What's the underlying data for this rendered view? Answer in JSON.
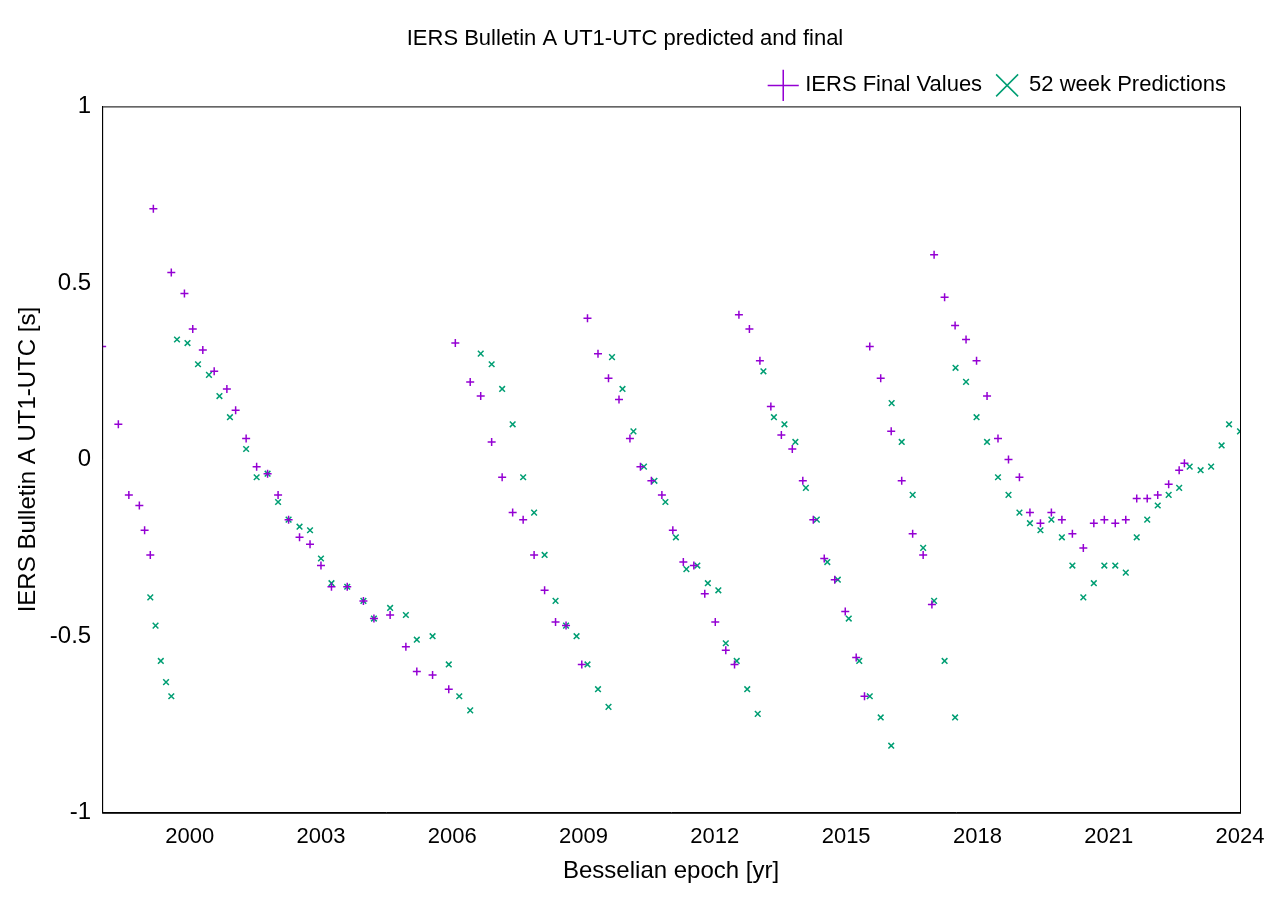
{
  "chart_data": {
    "type": "scatter",
    "title": "IERS Bulletin A UT1-UTC predicted and final",
    "x_label": "Besselian epoch [yr]",
    "y_label": "IERS Bulletin A UT1-UTC [s]",
    "xlim": [
      1998,
      2024
    ],
    "xticks": [
      2000,
      2003,
      2006,
      2009,
      2012,
      2015,
      2018,
      2021,
      2024
    ],
    "ylim": [
      -1,
      1
    ],
    "yticks": [
      -1,
      -0.5,
      0,
      0.5,
      1
    ],
    "grid": false,
    "legend": "top-right",
    "series": [
      {
        "name": "IERS Final Values",
        "color": "#9400d3",
        "marker": "plus",
        "x": [
          1998.0,
          1998.37,
          1998.61,
          1998.85,
          1998.97,
          1999.1,
          1999.17,
          1999.58,
          1999.88,
          2000.07,
          2000.3,
          2000.56,
          2000.85,
          2001.05,
          2001.29,
          2001.53,
          2001.78,
          2002.02,
          2002.26,
          2002.51,
          2002.75,
          2003.0,
          2003.24,
          2003.6,
          2003.97,
          2004.21,
          2004.58,
          2004.94,
          2005.19,
          2005.55,
          2005.92,
          2006.07,
          2006.41,
          2006.65,
          2006.9,
          2007.14,
          2007.38,
          2007.62,
          2007.87,
          2008.11,
          2008.36,
          2008.6,
          2008.96,
          2009.09,
          2009.33,
          2009.57,
          2009.81,
          2010.06,
          2010.3,
          2010.55,
          2010.79,
          2011.04,
          2011.28,
          2011.52,
          2011.77,
          2012.01,
          2012.25,
          2012.45,
          2012.55,
          2012.79,
          2013.03,
          2013.28,
          2013.52,
          2013.77,
          2014.01,
          2014.25,
          2014.5,
          2014.74,
          2014.98,
          2015.23,
          2015.42,
          2015.54,
          2015.79,
          2016.03,
          2016.27,
          2016.52,
          2016.76,
          2016.96,
          2017.01,
          2017.25,
          2017.49,
          2017.74,
          2017.98,
          2018.22,
          2018.47,
          2018.71,
          2018.96,
          2019.2,
          2019.44,
          2019.69,
          2019.93,
          2020.17,
          2020.42,
          2020.66,
          2020.9,
          2021.15,
          2021.39,
          2021.64,
          2021.88,
          2022.12,
          2022.37,
          2022.61,
          2022.73
        ],
        "values": [
          0.32,
          0.1,
          -0.1,
          -0.13,
          -0.2,
          -0.27,
          0.71,
          0.53,
          0.47,
          0.37,
          0.31,
          0.25,
          0.2,
          0.14,
          0.06,
          -0.02,
          -0.04,
          -0.1,
          -0.17,
          -0.22,
          -0.24,
          -0.3,
          -0.36,
          -0.36,
          -0.4,
          -0.45,
          -0.44,
          -0.53,
          -0.6,
          -0.61,
          -0.65,
          0.33,
          0.22,
          0.18,
          0.05,
          -0.05,
          -0.15,
          -0.17,
          -0.27,
          -0.37,
          -0.46,
          -0.47,
          -0.58,
          0.4,
          0.3,
          0.23,
          0.17,
          0.06,
          -0.02,
          -0.06,
          -0.1,
          -0.2,
          -0.29,
          -0.3,
          -0.38,
          -0.46,
          -0.54,
          -0.58,
          0.41,
          0.37,
          0.28,
          0.15,
          0.07,
          0.03,
          -0.06,
          -0.17,
          -0.28,
          -0.34,
          -0.43,
          -0.56,
          -0.67,
          0.32,
          0.23,
          0.08,
          -0.06,
          -0.21,
          -0.27,
          -0.41,
          0.58,
          0.46,
          0.38,
          0.34,
          0.28,
          0.18,
          0.06,
          0.0,
          -0.05,
          -0.15,
          -0.18,
          -0.15,
          -0.17,
          -0.21,
          -0.25,
          -0.18,
          -0.17,
          -0.18,
          -0.17,
          -0.11,
          -0.11,
          -0.1,
          -0.07,
          -0.03,
          -0.01
        ]
      },
      {
        "name": "52 week Predictions",
        "color": "#009e73",
        "marker": "x",
        "x": [
          1999.1,
          1999.22,
          1999.34,
          1999.46,
          1999.58,
          1999.71,
          1999.95,
          2000.19,
          2000.44,
          2000.68,
          2000.92,
          2001.29,
          2001.53,
          2001.78,
          2002.02,
          2002.26,
          2002.51,
          2002.75,
          2003.0,
          2003.24,
          2003.6,
          2003.97,
          2004.21,
          2004.58,
          2004.94,
          2005.19,
          2005.55,
          2005.92,
          2006.16,
          2006.41,
          2006.65,
          2006.9,
          2007.14,
          2007.38,
          2007.62,
          2007.87,
          2008.11,
          2008.36,
          2008.6,
          2008.84,
          2009.09,
          2009.33,
          2009.57,
          2009.65,
          2009.89,
          2010.14,
          2010.38,
          2010.62,
          2010.87,
          2011.11,
          2011.35,
          2011.6,
          2011.84,
          2012.08,
          2012.25,
          2012.5,
          2012.74,
          2012.98,
          2013.11,
          2013.35,
          2013.59,
          2013.84,
          2014.08,
          2014.33,
          2014.57,
          2014.81,
          2015.06,
          2015.3,
          2015.54,
          2015.79,
          2016.03,
          2016.04,
          2016.27,
          2016.52,
          2016.76,
          2017.01,
          2017.25,
          2017.49,
          2017.5,
          2017.74,
          2017.98,
          2018.22,
          2018.47,
          2018.71,
          2018.96,
          2019.2,
          2019.44,
          2019.69,
          2019.93,
          2020.17,
          2020.42,
          2020.66,
          2020.9,
          2021.15,
          2021.39,
          2021.64,
          2021.88,
          2022.12,
          2022.37,
          2022.61,
          2022.85,
          2023.1,
          2023.34,
          2023.58,
          2023.75,
          2024.0
        ],
        "values": [
          -0.39,
          -0.47,
          -0.57,
          -0.63,
          -0.67,
          0.34,
          0.33,
          0.27,
          0.24,
          0.18,
          0.12,
          0.03,
          -0.05,
          -0.04,
          -0.12,
          -0.17,
          -0.19,
          -0.2,
          -0.28,
          -0.35,
          -0.36,
          -0.4,
          -0.45,
          -0.42,
          -0.44,
          -0.51,
          -0.5,
          -0.58,
          -0.67,
          -0.71,
          0.3,
          0.27,
          0.2,
          0.1,
          -0.05,
          -0.15,
          -0.27,
          -0.4,
          -0.47,
          -0.5,
          -0.58,
          -0.65,
          -0.7,
          0.29,
          0.2,
          0.08,
          -0.02,
          -0.06,
          -0.12,
          -0.22,
          -0.31,
          -0.3,
          -0.35,
          -0.37,
          -0.52,
          -0.57,
          -0.65,
          -0.72,
          0.25,
          0.12,
          0.1,
          0.05,
          -0.08,
          -0.17,
          -0.29,
          -0.34,
          -0.45,
          -0.57,
          -0.67,
          -0.73,
          -0.81,
          0.16,
          0.05,
          -0.1,
          -0.25,
          -0.4,
          -0.57,
          -0.73,
          0.26,
          0.22,
          0.12,
          0.05,
          -0.05,
          -0.1,
          -0.15,
          -0.18,
          -0.2,
          -0.17,
          -0.22,
          -0.3,
          -0.39,
          -0.35,
          -0.3,
          -0.3,
          -0.32,
          -0.22,
          -0.17,
          -0.13,
          -0.1,
          -0.08,
          -0.02,
          -0.03,
          -0.02,
          0.04,
          0.1,
          0.08
        ]
      }
    ]
  }
}
